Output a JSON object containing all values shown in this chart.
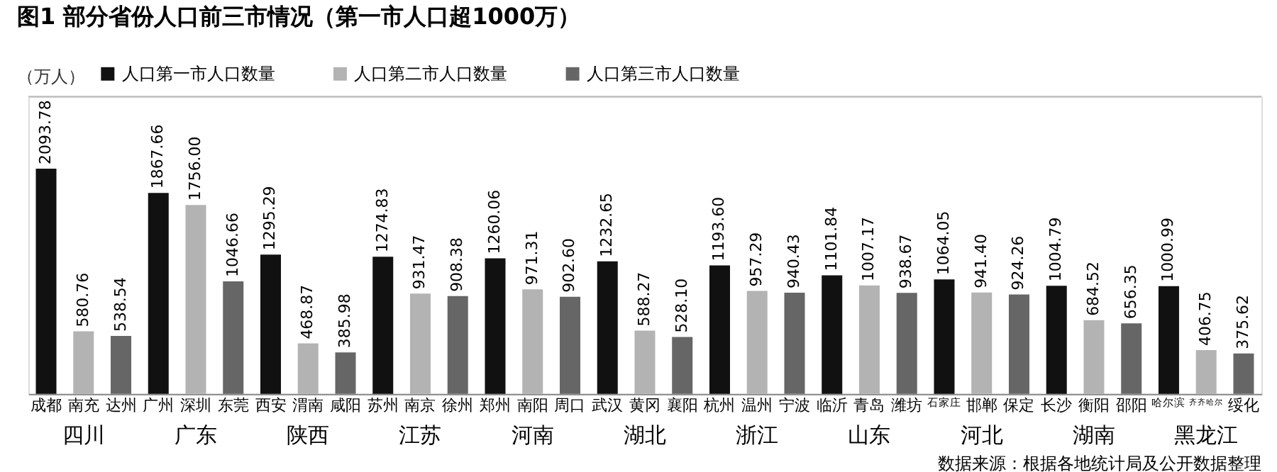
{
  "chart_data": {
    "type": "bar",
    "title": "图1 部分省份人口前三市情况（第一市人口超1000万）",
    "ylabel": "（万人）",
    "categories": [
      "成都",
      "南充",
      "达州",
      "广州",
      "深圳",
      "东莞",
      "西安",
      "渭南",
      "咸阳",
      "苏州",
      "南京",
      "徐州",
      "郑州",
      "南阳",
      "周口",
      "武汉",
      "黄冈",
      "襄阳",
      "杭州",
      "温州",
      "宁波",
      "临沂",
      "青岛",
      "潍坊",
      "石家庄",
      "邯郸",
      "保定",
      "长沙",
      "衡阳",
      "邵阳",
      "哈尔滨",
      "齐齐哈尔",
      "绥化"
    ],
    "series": [
      {
        "name": "人口第一市人口数量",
        "color": "#111111",
        "values": [
          2093.78,
          null,
          null,
          1867.66,
          null,
          null,
          1295.29,
          null,
          null,
          1274.83,
          null,
          null,
          1260.06,
          null,
          null,
          1232.65,
          null,
          null,
          1193.6,
          null,
          null,
          1101.84,
          null,
          null,
          1064.05,
          null,
          null,
          1004.79,
          null,
          null,
          1000.99,
          null,
          null
        ],
        "value_labels": [
          "2093.78",
          null,
          null,
          "1867.66",
          null,
          null,
          "1295.29",
          null,
          null,
          "1274.83",
          null,
          null,
          "1260.06",
          null,
          null,
          "1232.65",
          null,
          null,
          "1193.60",
          null,
          null,
          "1101.84",
          null,
          null,
          "1064.05",
          null,
          null,
          "1004.79",
          null,
          null,
          "1000.99",
          null,
          null
        ]
      },
      {
        "name": "人口第二市人口数量",
        "color": "#b3b3b3",
        "values": [
          null,
          580.76,
          null,
          null,
          1756.0,
          null,
          null,
          468.87,
          null,
          null,
          931.47,
          null,
          null,
          971.31,
          null,
          null,
          588.27,
          null,
          null,
          957.29,
          null,
          null,
          1007.17,
          null,
          null,
          941.4,
          null,
          null,
          684.52,
          null,
          null,
          406.75,
          null
        ],
        "value_labels": [
          null,
          "580.76",
          null,
          null,
          "1756.00",
          null,
          null,
          "468.87",
          null,
          null,
          "931.47",
          null,
          null,
          "971.31",
          null,
          null,
          "588.27",
          null,
          null,
          "957.29",
          null,
          null,
          "1007.17",
          null,
          null,
          "941.40",
          null,
          null,
          "684.52",
          null,
          null,
          "406.75",
          null
        ]
      },
      {
        "name": "人口第三市人口数量",
        "color": "#666666",
        "values": [
          null,
          null,
          538.54,
          null,
          null,
          1046.66,
          null,
          null,
          385.98,
          null,
          null,
          908.38,
          null,
          null,
          902.6,
          null,
          null,
          528.1,
          null,
          null,
          940.43,
          null,
          null,
          938.67,
          null,
          null,
          924.26,
          null,
          null,
          656.35,
          null,
          null,
          375.62
        ],
        "value_labels": [
          null,
          null,
          "538.54",
          null,
          null,
          "1046.66",
          null,
          null,
          "385.98",
          null,
          null,
          "908.38",
          null,
          null,
          "902.60",
          null,
          null,
          "528.10",
          null,
          null,
          "940.43",
          null,
          null,
          "938.67",
          null,
          null,
          "924.26",
          null,
          null,
          "656.35",
          null,
          null,
          "375.62"
        ]
      }
    ],
    "data_labels": true,
    "grid": false,
    "legend": "top left",
    "annotations": [
      "四川",
      "广东",
      "陕西",
      "江苏",
      "河南",
      "湖北",
      "浙江",
      "山东",
      "河北",
      "湖南",
      "黑龙江",
      "数据来源：根据各地统计局及公开数据整理"
    ]
  }
}
